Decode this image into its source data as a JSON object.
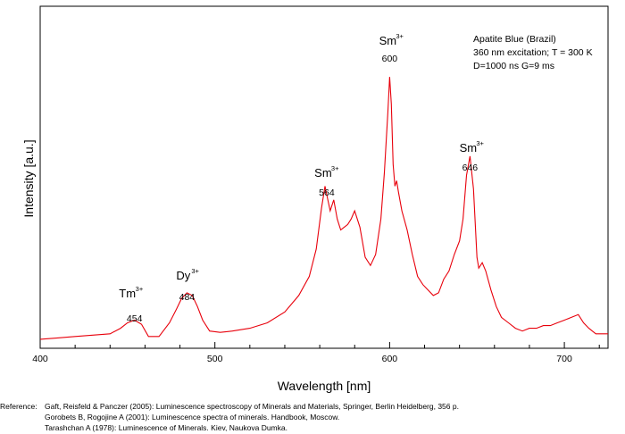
{
  "chart_data": {
    "type": "line",
    "title": "",
    "xlabel": "Wavelength [nm]",
    "ylabel": "Intensity [a.u.]",
    "xlim": [
      400,
      725
    ],
    "ylim": [
      0,
      1
    ],
    "x_ticks": [
      400,
      500,
      600,
      700
    ],
    "y_ticks": [],
    "grid": false,
    "series": [
      {
        "color": "#e8000b",
        "x": [
          400,
          410,
          420,
          430,
          440,
          446,
          450,
          454,
          458,
          462,
          468,
          474,
          478,
          481,
          484,
          487,
          490,
          493,
          497,
          503,
          510,
          520,
          530,
          540,
          548,
          554,
          558,
          561,
          563,
          564,
          566,
          568,
          570,
          572,
          574,
          576,
          578,
          580,
          583,
          586,
          589,
          592,
          595,
          597,
          599,
          600,
          601,
          602,
          603,
          604,
          605,
          607,
          610,
          613,
          616,
          619,
          622,
          625,
          628,
          631,
          634,
          637,
          640,
          642,
          644,
          646,
          648,
          650,
          651,
          653,
          655,
          658,
          661,
          664,
          668,
          672,
          676,
          680,
          684,
          688,
          692,
          696,
          700,
          704,
          708,
          711,
          714,
          718,
          722,
          725
        ],
        "y": [
          0.02,
          0.025,
          0.03,
          0.035,
          0.04,
          0.06,
          0.08,
          0.09,
          0.075,
          0.03,
          0.03,
          0.08,
          0.13,
          0.17,
          0.19,
          0.18,
          0.14,
          0.09,
          0.05,
          0.045,
          0.05,
          0.06,
          0.08,
          0.12,
          0.18,
          0.25,
          0.35,
          0.5,
          0.58,
          0.55,
          0.49,
          0.53,
          0.46,
          0.42,
          0.43,
          0.44,
          0.46,
          0.49,
          0.43,
          0.32,
          0.29,
          0.33,
          0.46,
          0.63,
          0.85,
          0.98,
          0.88,
          0.66,
          0.58,
          0.6,
          0.56,
          0.49,
          0.42,
          0.33,
          0.25,
          0.22,
          0.2,
          0.18,
          0.19,
          0.24,
          0.27,
          0.33,
          0.38,
          0.46,
          0.62,
          0.69,
          0.57,
          0.32,
          0.28,
          0.3,
          0.27,
          0.2,
          0.14,
          0.1,
          0.08,
          0.06,
          0.05,
          0.06,
          0.06,
          0.07,
          0.07,
          0.08,
          0.09,
          0.1,
          0.11,
          0.08,
          0.06,
          0.04,
          0.04,
          0.04
        ]
      }
    ],
    "annotations": [
      {
        "ion": "Tm",
        "charge": "3+",
        "wavelength": "454",
        "at": 454
      },
      {
        "ion": "Dy",
        "charge": "3+",
        "wavelength": "484",
        "at": 484
      },
      {
        "ion": "Sm",
        "charge": "3+",
        "wavelength": "564",
        "at": 564
      },
      {
        "ion": "Sm",
        "charge": "3+",
        "wavelength": "600",
        "at": 600
      },
      {
        "ion": "Sm",
        "charge": "3+",
        "wavelength": "646",
        "at": 646
      }
    ],
    "info": [
      "Apatite Blue (Brazil)",
      "360 nm excitation; T = 300 K",
      "D=1000 ns G=9 ms"
    ]
  },
  "reference": {
    "label": "Reference:",
    "lines": [
      "Gaft, Reisfeld & Panczer (2005): Luminescence spectroscopy of Minerals and Materials, Springer, Berlin Heidelberg, 356 p.",
      "Gorobets B, Rogojine A (2001): Luminescence spectra of minerals. Handbook, Moscow.",
      "Tarashchan A (1978): Luminescence of Minerals. Kiev, Naukova Dumka."
    ]
  }
}
